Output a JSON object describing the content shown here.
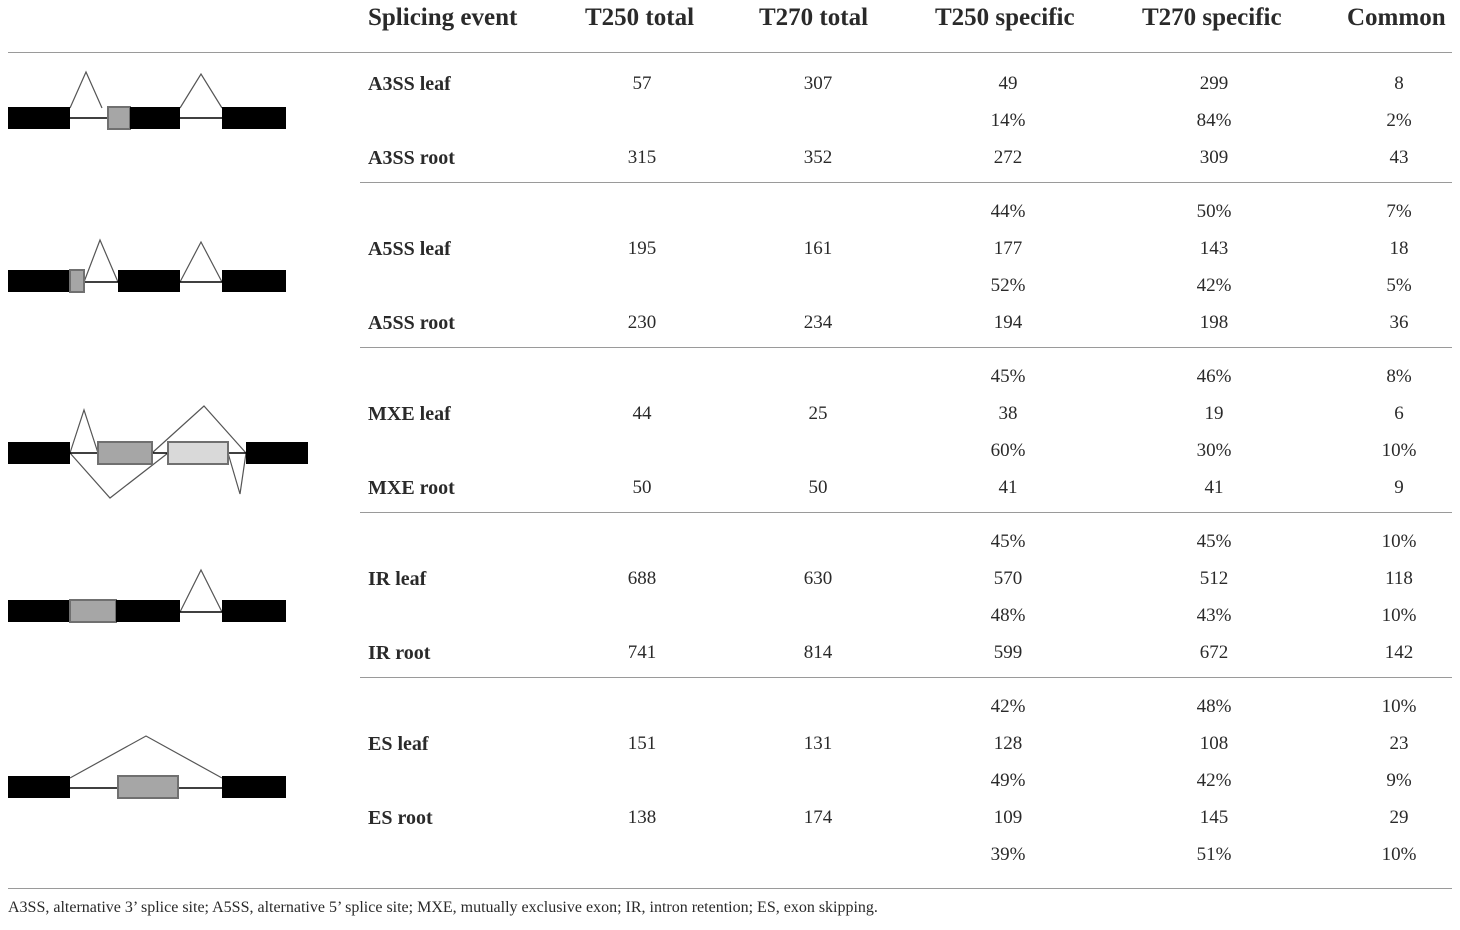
{
  "table": {
    "headers": {
      "event": "Splicing event",
      "t250_total": "T250 total",
      "t270_total": "T270 total",
      "t250_specific": "T250 specific",
      "t270_specific": "T270 specific",
      "common": "Common"
    },
    "groups": [
      {
        "diagram": "a3ss-diagram",
        "rows": [
          {
            "label": "A3SS leaf",
            "t250_total": "57",
            "t270_total": "307",
            "t250_specific": "49",
            "t270_specific": "299",
            "common": "8"
          },
          {
            "label": "",
            "t250_total": "",
            "t270_total": "",
            "t250_specific": "14%",
            "t270_specific": "84%",
            "common": "2%"
          },
          {
            "label": "A3SS root",
            "t250_total": "315",
            "t270_total": "352",
            "t250_specific": "272",
            "t270_specific": "309",
            "common": "43"
          }
        ]
      },
      {
        "diagram": "a5ss-diagram",
        "rows": [
          {
            "label": "",
            "t250_total": "",
            "t270_total": "",
            "t250_specific": "44%",
            "t270_specific": "50%",
            "common": "7%"
          },
          {
            "label": "A5SS leaf",
            "t250_total": "195",
            "t270_total": "161",
            "t250_specific": "177",
            "t270_specific": "143",
            "common": "18"
          },
          {
            "label": "",
            "t250_total": "",
            "t270_total": "",
            "t250_specific": "52%",
            "t270_specific": "42%",
            "common": "5%"
          },
          {
            "label": "A5SS root",
            "t250_total": "230",
            "t270_total": "234",
            "t250_specific": "194",
            "t270_specific": "198",
            "common": "36"
          }
        ]
      },
      {
        "diagram": "mxe-diagram",
        "rows": [
          {
            "label": "",
            "t250_total": "",
            "t270_total": "",
            "t250_specific": "45%",
            "t270_specific": "46%",
            "common": "8%"
          },
          {
            "label": "MXE leaf",
            "t250_total": "44",
            "t270_total": "25",
            "t250_specific": "38",
            "t270_specific": "19",
            "common": "6"
          },
          {
            "label": "",
            "t250_total": "",
            "t270_total": "",
            "t250_specific": "60%",
            "t270_specific": "30%",
            "common": "10%"
          },
          {
            "label": "MXE root",
            "t250_total": "50",
            "t270_total": "50",
            "t250_specific": "41",
            "t270_specific": "41",
            "common": "9"
          }
        ]
      },
      {
        "diagram": "ir-diagram",
        "rows": [
          {
            "label": "",
            "t250_total": "",
            "t270_total": "",
            "t250_specific": "45%",
            "t270_specific": "45%",
            "common": "10%"
          },
          {
            "label": "IR leaf",
            "t250_total": "688",
            "t270_total": "630",
            "t250_specific": "570",
            "t270_specific": "512",
            "common": "118"
          },
          {
            "label": "",
            "t250_total": "",
            "t270_total": "",
            "t250_specific": "48%",
            "t270_specific": "43%",
            "common": "10%"
          },
          {
            "label": "IR root",
            "t250_total": "741",
            "t270_total": "814",
            "t250_specific": "599",
            "t270_specific": "672",
            "common": "142"
          }
        ]
      },
      {
        "diagram": "es-diagram",
        "rows": [
          {
            "label": "",
            "t250_total": "",
            "t270_total": "",
            "t250_specific": "42%",
            "t270_specific": "48%",
            "common": "10%"
          },
          {
            "label": "ES leaf",
            "t250_total": "151",
            "t270_total": "131",
            "t250_specific": "128",
            "t270_specific": "108",
            "common": "23"
          },
          {
            "label": "",
            "t250_total": "",
            "t270_total": "",
            "t250_specific": "49%",
            "t270_specific": "42%",
            "common": "9%"
          },
          {
            "label": "ES root",
            "t250_total": "138",
            "t270_total": "174",
            "t250_specific": "109",
            "t270_specific": "145",
            "common": "29"
          },
          {
            "label": "",
            "t250_total": "",
            "t270_total": "",
            "t250_specific": "39%",
            "t270_specific": "51%",
            "common": "10%"
          }
        ]
      }
    ],
    "footnote": "A3SS, alternative 3’ splice site; A5SS, alternative 5’ splice site; MXE, mutually exclusive exon; IR, intron retention; ES, exon skipping."
  },
  "colors": {
    "constitutive_exon": "#000000",
    "alternative_exon": "#a6a6a6",
    "alternative_exon_light": "#d9d9d9",
    "rule": "#9a9a9a"
  }
}
